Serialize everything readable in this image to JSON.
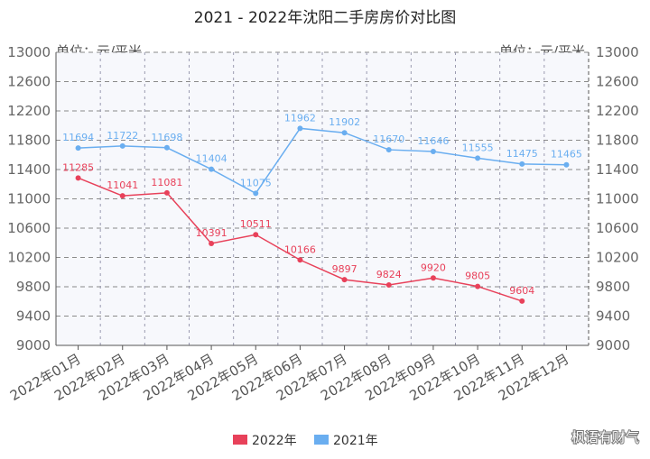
{
  "chart_data": {
    "type": "line",
    "title": "2021 - 2022年沈阳二手房房价对比图",
    "ylabel_left": "单位：元/平米",
    "ylabel_right": "单位：元/平米",
    "ylim": [
      9000,
      13000
    ],
    "yticks": [
      9000,
      9400,
      9800,
      10200,
      10600,
      11000,
      11400,
      11800,
      12200,
      12600,
      13000
    ],
    "categories": [
      "2022年01月",
      "2022年02月",
      "2022年03月",
      "2022年04月",
      "2022年05月",
      "2022年06月",
      "2022年07月",
      "2022年08月",
      "2022年09月",
      "2022年10月",
      "2022年11月",
      "2022年12月"
    ],
    "series": [
      {
        "name": "2022年",
        "color": "#e8415a",
        "values": [
          11285,
          11041,
          11081,
          10391,
          10511,
          10166,
          9897,
          9824,
          9920,
          9805,
          9604,
          null
        ]
      },
      {
        "name": "2021年",
        "color": "#6aaef0",
        "values": [
          11694,
          11722,
          11698,
          11404,
          11075,
          11962,
          11902,
          11670,
          11646,
          11555,
          11475,
          11465
        ]
      }
    ],
    "grid": true,
    "legend": "bottom-center"
  },
  "watermark": "枫语有财气",
  "colors": {
    "plot_bg": "#f7f8fc",
    "grid": "#8a8a8a",
    "axis": "#555555"
  }
}
